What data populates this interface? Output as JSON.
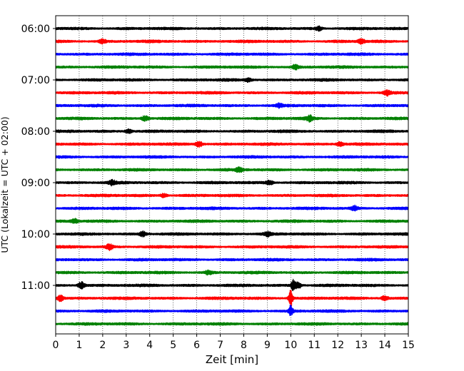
{
  "chart_data": {
    "type": "line",
    "title": "",
    "xlabel": "Zeit  [min]",
    "ylabel": "UTC (Lokalzeit = UTC + 02:00)",
    "xlim": [
      0,
      15
    ],
    "x_ticks": [
      0,
      1,
      2,
      3,
      4,
      5,
      6,
      7,
      8,
      9,
      10,
      11,
      12,
      13,
      14,
      15
    ],
    "y_ticks": [
      {
        "label": "06:00",
        "trace_index": 0
      },
      {
        "label": "07:00",
        "trace_index": 4
      },
      {
        "label": "08:00",
        "trace_index": 8
      },
      {
        "label": "09:00",
        "trace_index": 12
      },
      {
        "label": "10:00",
        "trace_index": 16
      },
      {
        "label": "11:00",
        "trace_index": 20
      }
    ],
    "grid": {
      "x": true,
      "y": false,
      "style": "dotted"
    },
    "trace_count": 24,
    "color_cycle": [
      "#000000",
      "#ff0000",
      "#0000ff",
      "#008000"
    ],
    "traces": [
      {
        "start": "06:00",
        "color": "#000000",
        "events": [
          [
            11.2,
            1.4
          ]
        ]
      },
      {
        "start": "06:15",
        "color": "#ff0000",
        "events": [
          [
            2.0,
            1.3
          ],
          [
            13.0,
            1.5
          ]
        ]
      },
      {
        "start": "06:30",
        "color": "#0000ff",
        "events": []
      },
      {
        "start": "06:45",
        "color": "#008000",
        "events": [
          [
            10.2,
            1.5
          ]
        ]
      },
      {
        "start": "07:00",
        "color": "#000000",
        "events": [
          [
            8.2,
            1.2
          ]
        ]
      },
      {
        "start": "07:15",
        "color": "#ff0000",
        "events": [
          [
            14.1,
            1.7
          ]
        ]
      },
      {
        "start": "07:30",
        "color": "#0000ff",
        "events": [
          [
            9.5,
            1.3
          ]
        ]
      },
      {
        "start": "07:45",
        "color": "#008000",
        "events": [
          [
            3.8,
            1.8
          ],
          [
            10.8,
            1.9
          ]
        ]
      },
      {
        "start": "08:00",
        "color": "#000000",
        "events": [
          [
            3.1,
            1.4
          ]
        ]
      },
      {
        "start": "08:15",
        "color": "#ff0000",
        "events": [
          [
            6.1,
            2.0
          ],
          [
            12.1,
            1.6
          ]
        ]
      },
      {
        "start": "08:30",
        "color": "#0000ff",
        "events": []
      },
      {
        "start": "08:45",
        "color": "#008000",
        "events": [
          [
            7.8,
            1.6
          ]
        ]
      },
      {
        "start": "09:00",
        "color": "#000000",
        "events": [
          [
            2.4,
            1.6
          ],
          [
            9.1,
            1.5
          ]
        ]
      },
      {
        "start": "09:15",
        "color": "#ff0000",
        "events": [
          [
            4.6,
            1.3
          ]
        ]
      },
      {
        "start": "09:30",
        "color": "#0000ff",
        "events": [
          [
            12.7,
            1.6
          ]
        ]
      },
      {
        "start": "09:45",
        "color": "#008000",
        "events": [
          [
            0.8,
            1.4
          ]
        ]
      },
      {
        "start": "10:00",
        "color": "#000000",
        "events": [
          [
            3.7,
            1.7
          ],
          [
            9.0,
            1.5
          ]
        ]
      },
      {
        "start": "10:15",
        "color": "#ff0000",
        "events": [
          [
            2.3,
            2.0
          ]
        ]
      },
      {
        "start": "10:30",
        "color": "#0000ff",
        "events": []
      },
      {
        "start": "10:45",
        "color": "#008000",
        "events": [
          [
            6.5,
            1.4
          ]
        ]
      },
      {
        "start": "11:00",
        "color": "#000000",
        "events": [
          [
            1.1,
            2.4
          ],
          [
            10.1,
            3.5
          ],
          [
            10.3,
            2.2
          ]
        ]
      },
      {
        "start": "11:15",
        "color": "#ff0000",
        "events": [
          [
            0.2,
            2.0
          ],
          [
            10.0,
            6.0
          ],
          [
            14.0,
            1.6
          ]
        ]
      },
      {
        "start": "11:30",
        "color": "#0000ff",
        "events": [
          [
            10.0,
            4.0
          ]
        ]
      },
      {
        "start": "11:45",
        "color": "#008000",
        "events": []
      }
    ]
  }
}
